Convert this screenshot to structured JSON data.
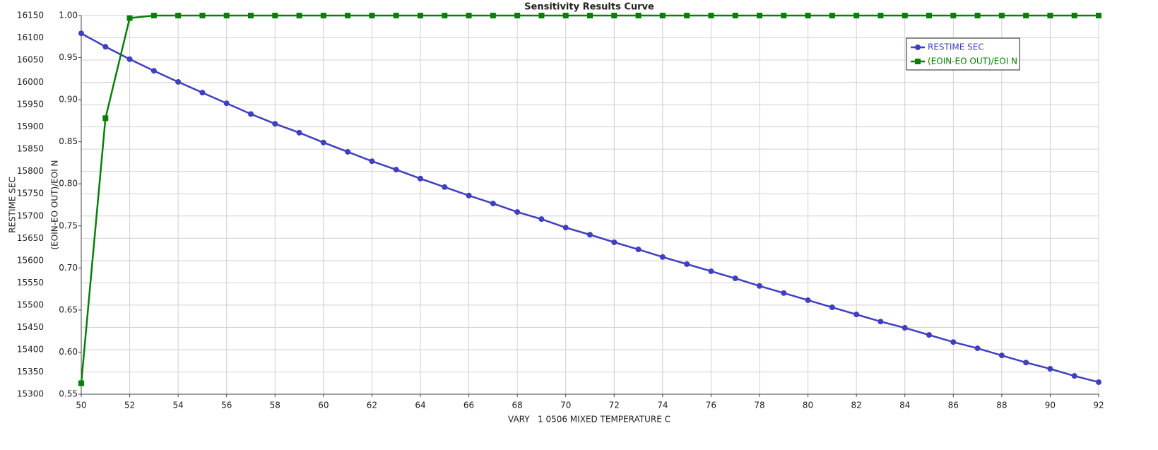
{
  "chart_data": {
    "type": "line",
    "title": "Sensitivity Results Curve",
    "x_label": "VARY   1 0506 MIXED TEMPERATURE C",
    "y_label": "RESTIME SEC",
    "y2_label": "(EOIN-EO OUT)/EOI N",
    "x": [
      50,
      51,
      52,
      53,
      54,
      55,
      56,
      57,
      58,
      59,
      60,
      61,
      62,
      63,
      64,
      65,
      66,
      67,
      68,
      69,
      70,
      71,
      72,
      73,
      74,
      75,
      76,
      77,
      78,
      79,
      80,
      81,
      82,
      83,
      84,
      85,
      86,
      87,
      88,
      89,
      90,
      91,
      92
    ],
    "xlim": [
      50,
      92
    ],
    "xticks": [
      50,
      52,
      54,
      56,
      58,
      60,
      62,
      64,
      66,
      68,
      70,
      72,
      74,
      76,
      78,
      80,
      82,
      84,
      86,
      88,
      90,
      92
    ],
    "ylim": [
      15300,
      16150
    ],
    "yticks": [
      15300,
      15350,
      15400,
      15450,
      15500,
      15550,
      15600,
      15650,
      15700,
      15750,
      15800,
      15850,
      15900,
      15950,
      16000,
      16050,
      16100,
      16150
    ],
    "y2lim": [
      0.55,
      1.0
    ],
    "y2ticks": [
      0.55,
      {
        "value": 0.6,
        "label": "0.60"
      },
      0.65,
      {
        "value": 0.7,
        "label": "0.70"
      },
      0.75,
      {
        "value": 0.8,
        "label": "0.80"
      },
      0.85,
      {
        "value": 0.9,
        "label": "0.90"
      },
      0.95,
      {
        "value": 1.0,
        "label": "1.00"
      }
    ],
    "grid": true,
    "legend": "upper right",
    "series": [
      {
        "name": "RESTIME SEC",
        "color": "#3f3fbf",
        "marker": "circle",
        "values": [
          16110,
          16080,
          16052,
          16026,
          16001,
          15977,
          15953,
          15929,
          15907,
          15887,
          15865,
          15844,
          15823,
          15804,
          15784,
          15765,
          15746,
          15728,
          15709,
          15693,
          15674,
          15658,
          15641,
          15625,
          15608,
          15592,
          15576,
          15560,
          15543,
          15527,
          15511,
          15495,
          15479,
          15463,
          15449,
          15433,
          15417,
          15403,
          15387,
          15371,
          15357,
          15341,
          15327
        ]
      },
      {
        "name": "(EOIN-EO OUT)/EOI N",
        "color": "#087f08",
        "marker": "square",
        "axis": "y2",
        "values": [
          0.563,
          0.878,
          0.997,
          1.0,
          1.0,
          1.0,
          1.0,
          1.0,
          1.0,
          1.0,
          1.0,
          1.0,
          1.0,
          1.0,
          1.0,
          1.0,
          1.0,
          1.0,
          1.0,
          1.0,
          1.0,
          1.0,
          1.0,
          1.0,
          1.0,
          1.0,
          1.0,
          1.0,
          1.0,
          1.0,
          1.0,
          1.0,
          1.0,
          1.0,
          1.0,
          1.0,
          1.0,
          1.0,
          1.0,
          1.0,
          1.0,
          1.0,
          1.0
        ]
      }
    ]
  }
}
